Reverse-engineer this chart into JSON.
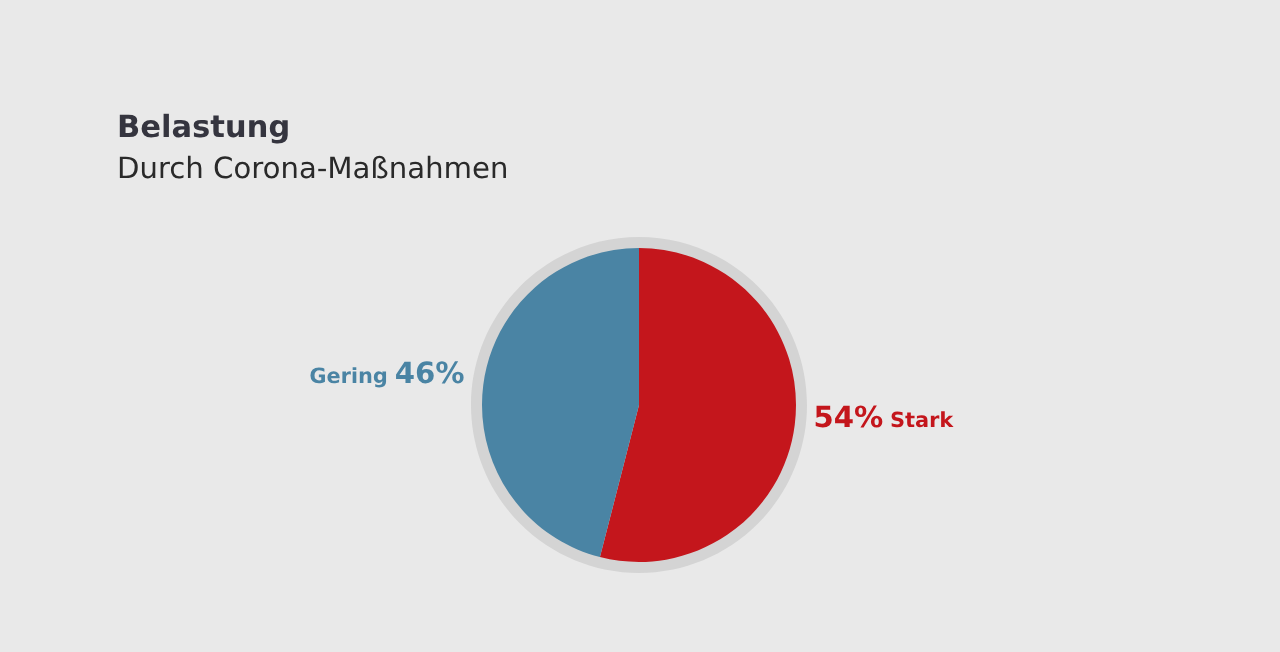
{
  "chart_data": {
    "type": "pie",
    "title": "Belastung",
    "subtitle": "Durch Corona-Maßnahmen",
    "categories": [
      "Stark",
      "Gering"
    ],
    "values": [
      54,
      46
    ],
    "colors": [
      "#c4161c",
      "#4a84a4"
    ],
    "value_labels": [
      "54%",
      "46%"
    ]
  }
}
